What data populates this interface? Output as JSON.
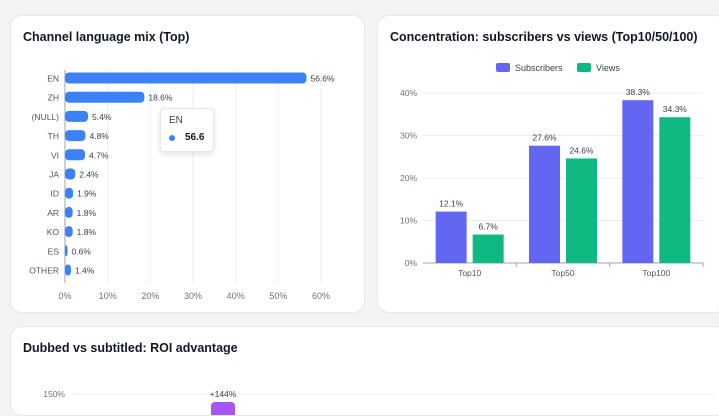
{
  "cards": {
    "language_title": "Channel language mix (Top)",
    "concentration_title": "Concentration: subscribers vs views (Top10/50/100)",
    "roi_title": "Dubbed vs subtitled: ROI advantage"
  },
  "tooltip": {
    "label": "EN",
    "value": "56.6"
  },
  "colors": {
    "lang_bar": "#3b82f6",
    "subscribers": "#6366f1",
    "views": "#10b981",
    "roi_bar": "#a855f7"
  },
  "chart_data": [
    {
      "type": "bar",
      "orientation": "horizontal",
      "title": "Channel language mix (Top)",
      "categories": [
        "EN",
        "ZH",
        "(NULL)",
        "TH",
        "VI",
        "JA",
        "ID",
        "AR",
        "KO",
        "ES",
        "OTHER"
      ],
      "values": [
        56.6,
        18.6,
        5.4,
        4.8,
        4.7,
        2.4,
        1.9,
        1.8,
        1.8,
        0.6,
        1.4
      ],
      "value_labels": [
        "56.6%",
        "18.6%",
        "5.4%",
        "4.8%",
        "4.7%",
        "2.4%",
        "1.9%",
        "1.8%",
        "1.8%",
        "0.6%",
        "1.4%"
      ],
      "xlim": [
        0,
        60
      ],
      "xticks": [
        "0%",
        "10%",
        "20%",
        "30%",
        "40%",
        "50%",
        "60%"
      ],
      "grid": true
    },
    {
      "type": "bar",
      "title": "Concentration: subscribers vs views (Top10/50/100)",
      "categories": [
        "Top10",
        "Top50",
        "Top100"
      ],
      "series": [
        {
          "name": "Subscribers",
          "values": [
            12.1,
            27.6,
            38.3
          ],
          "labels": [
            "12.1%",
            "27.6%",
            "38.3%"
          ]
        },
        {
          "name": "Views",
          "values": [
            6.7,
            24.6,
            34.3
          ],
          "labels": [
            "6.7%",
            "24.6%",
            "34.3%"
          ]
        }
      ],
      "ylim": [
        0,
        40
      ],
      "yticks": [
        "0%",
        "10%",
        "20%",
        "30%",
        "40%"
      ],
      "legend": "top-center",
      "grid": true
    },
    {
      "type": "bar",
      "title": "Dubbed vs subtitled: ROI advantage",
      "yticks": [
        "150%"
      ],
      "value_labels": [
        "+144%"
      ],
      "values": [
        144
      ]
    }
  ]
}
